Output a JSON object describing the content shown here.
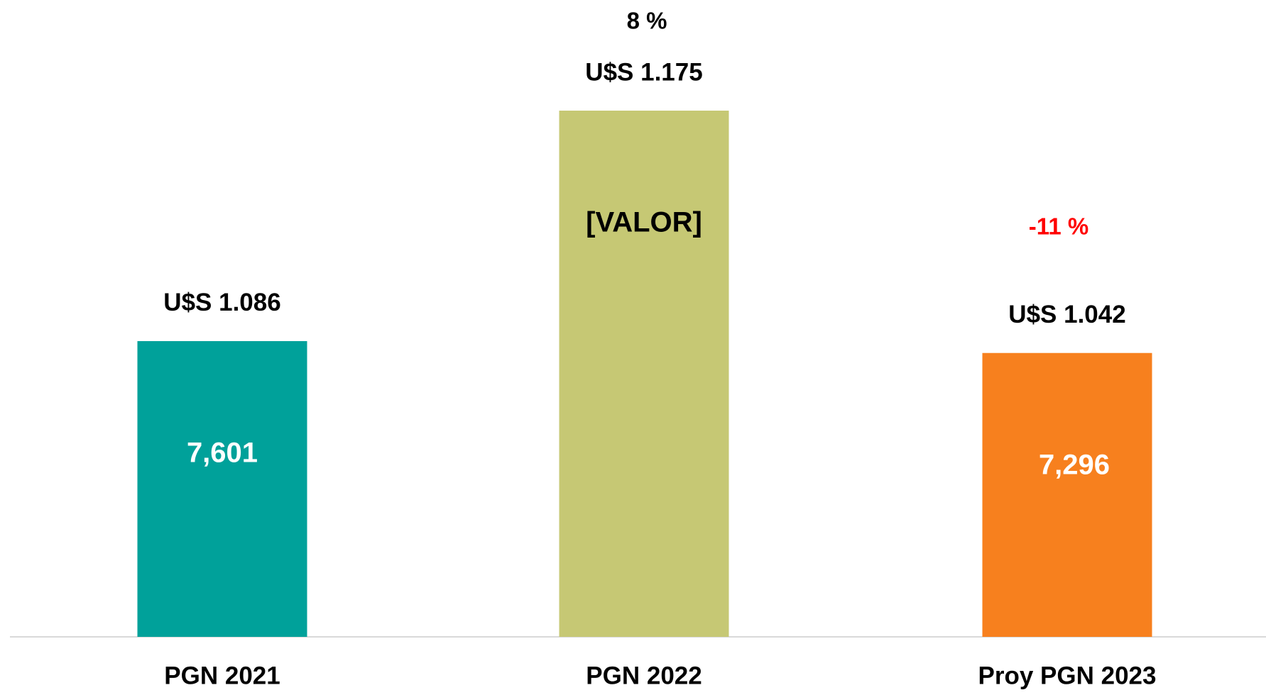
{
  "chart_data": {
    "type": "bar",
    "categories": [
      "PGN 2021",
      "PGN 2022",
      "Proy PGN 2023"
    ],
    "values": [
      7601,
      13525,
      7296
    ],
    "value_labels": [
      "7,601",
      "[VALOR]",
      "7,296"
    ],
    "colors": [
      "#00a19a",
      "#c6c874",
      "#f7801e"
    ],
    "usd_labels": [
      "U$S 1.086",
      "U$S 1.175",
      "U$S 1.042"
    ],
    "change_labels": [
      "8 %",
      "-11 %"
    ]
  }
}
